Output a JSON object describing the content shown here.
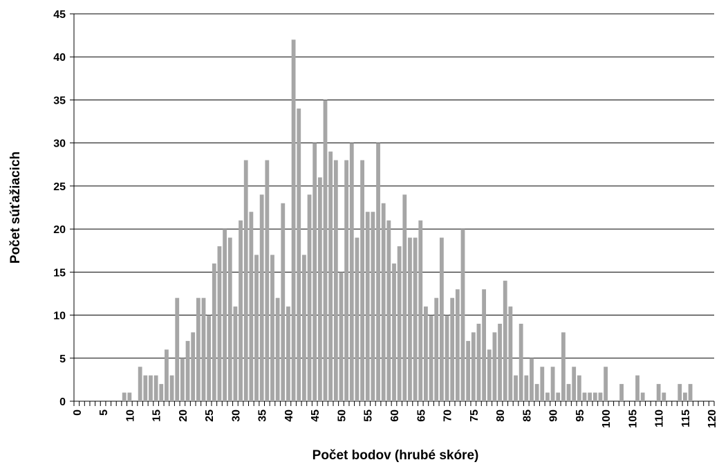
{
  "chart_data": {
    "type": "bar",
    "x_label": "Počet bodov (hrubé skóre)",
    "y_label": "Počet súťažiacich",
    "categories": [
      "0",
      null,
      null,
      null,
      null,
      "5",
      null,
      null,
      null,
      null,
      "10",
      null,
      null,
      null,
      null,
      "15",
      null,
      null,
      null,
      null,
      "20",
      null,
      null,
      null,
      null,
      "25",
      null,
      null,
      null,
      null,
      "30",
      null,
      null,
      null,
      null,
      "35",
      null,
      null,
      null,
      null,
      "40",
      null,
      null,
      null,
      null,
      "45",
      null,
      null,
      null,
      null,
      "50",
      null,
      null,
      null,
      null,
      "55",
      null,
      null,
      null,
      null,
      "60",
      null,
      null,
      null,
      null,
      "65",
      null,
      null,
      null,
      null,
      "70",
      null,
      null,
      null,
      null,
      "75",
      null,
      null,
      null,
      null,
      "80",
      null,
      null,
      null,
      null,
      "85",
      null,
      null,
      null,
      null,
      "90",
      null,
      null,
      null,
      null,
      "95",
      null,
      null,
      null,
      null,
      "100",
      null,
      null,
      null,
      null,
      "105",
      null,
      null,
      null,
      null,
      "110",
      null,
      null,
      null,
      null,
      "115",
      null,
      null,
      null,
      null,
      "120"
    ],
    "values": [
      0,
      0,
      0,
      0,
      0,
      0,
      0,
      0,
      0,
      1,
      1,
      0,
      4,
      3,
      3,
      3,
      2,
      6,
      3,
      12,
      5,
      7,
      8,
      12,
      12,
      10,
      16,
      18,
      20,
      19,
      11,
      21,
      28,
      22,
      17,
      24,
      28,
      17,
      12,
      23,
      11,
      42,
      34,
      17,
      24,
      30,
      26,
      35,
      29,
      28,
      15,
      28,
      30,
      19,
      28,
      22,
      22,
      30,
      23,
      21,
      16,
      18,
      24,
      19,
      19,
      21,
      11,
      10,
      12,
      19,
      10,
      12,
      13,
      20,
      7,
      8,
      9,
      13,
      6,
      8,
      9,
      14,
      11,
      3,
      9,
      3,
      5,
      2,
      4,
      1,
      4,
      1,
      8,
      2,
      4,
      3,
      1,
      1,
      1,
      1,
      4,
      0,
      0,
      2,
      0,
      0,
      3,
      1,
      0,
      0,
      2,
      1,
      0,
      0,
      2,
      1,
      2,
      0,
      0,
      0,
      0
    ],
    "color": "#a6a6a6",
    "ylim": [
      0,
      45
    ],
    "yticks": [
      0,
      5,
      10,
      15,
      20,
      25,
      30,
      35,
      40,
      45
    ],
    "grid": true
  }
}
